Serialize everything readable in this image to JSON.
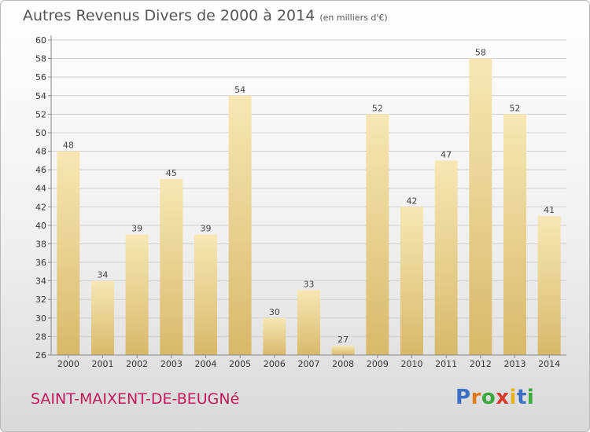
{
  "title": {
    "main": "Autres Revenus Divers de 2000 à 2014",
    "unit": "(en milliers d'€)"
  },
  "location": "SAINT-MAIXENT-DE-BEUGNé",
  "logo": {
    "letters": [
      "P",
      "r",
      "o",
      "x",
      "i",
      "t",
      "i"
    ],
    "colors": [
      "#3a6fc4",
      "#e07b1a",
      "#3aa83a",
      "#d93a2b",
      "#e8b21a",
      "#3a6fc4",
      "#3aa83a"
    ]
  },
  "colors": {
    "bar_light": "#f7e7b4",
    "bar_dark": "#d8b96a",
    "grid": "#cfcfcf",
    "axis_text": "#333333",
    "value_text": "#444444",
    "title": "#555555",
    "location": "#c2185b"
  },
  "chart_data": {
    "type": "bar",
    "title": "Autres Revenus Divers de 2000 à 2014",
    "xlabel": "",
    "ylabel": "",
    "categories": [
      "2000",
      "2001",
      "2002",
      "2003",
      "2004",
      "2005",
      "2006",
      "2007",
      "2008",
      "2009",
      "2010",
      "2011",
      "2012",
      "2013",
      "2014"
    ],
    "values": [
      48,
      34,
      39,
      45,
      39,
      54,
      30,
      33,
      27,
      52,
      42,
      47,
      58,
      52,
      41
    ],
    "ylim": [
      26,
      60
    ],
    "yticks": [
      26,
      28,
      30,
      32,
      34,
      36,
      38,
      40,
      42,
      44,
      46,
      48,
      50,
      52,
      54,
      56,
      58,
      60
    ],
    "grid": true,
    "legend": "none"
  }
}
